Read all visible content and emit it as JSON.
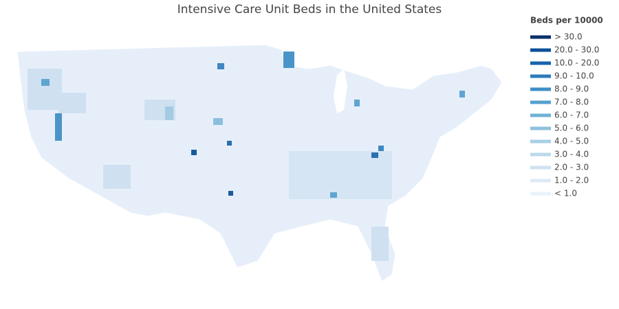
{
  "map": {
    "title": "Intensive Care Unit Beds in the United States",
    "legend": {
      "title": "Beds per 10000",
      "items": [
        {
          "label": "> 30.0",
          "color": "#08306b"
        },
        {
          "label": "20.0 - 30.0",
          "color": "#0b4f97"
        },
        {
          "label": "10.0 - 20.0",
          "color": "#1764ab"
        },
        {
          "label": "9.0 - 10.0",
          "color": "#2c7bbc"
        },
        {
          "label": "8.0 - 9.0",
          "color": "#3f8fc5"
        },
        {
          "label": "7.0 - 8.0",
          "color": "#56a0ce"
        },
        {
          "label": "6.0 - 7.0",
          "color": "#71b1d7"
        },
        {
          "label": "5.0 - 6.0",
          "color": "#8fc1de"
        },
        {
          "label": "4.0 - 5.0",
          "color": "#a8cfe5"
        },
        {
          "label": "3.0 - 4.0",
          "color": "#bdd8ec"
        },
        {
          "label": "2.0 - 3.0",
          "color": "#d0e2f2"
        },
        {
          "label": "1.0 - 2.0",
          "color": "#dde9f6"
        },
        {
          "label": "< 1.0",
          "color": "#eaf2fb"
        }
      ]
    }
  }
}
